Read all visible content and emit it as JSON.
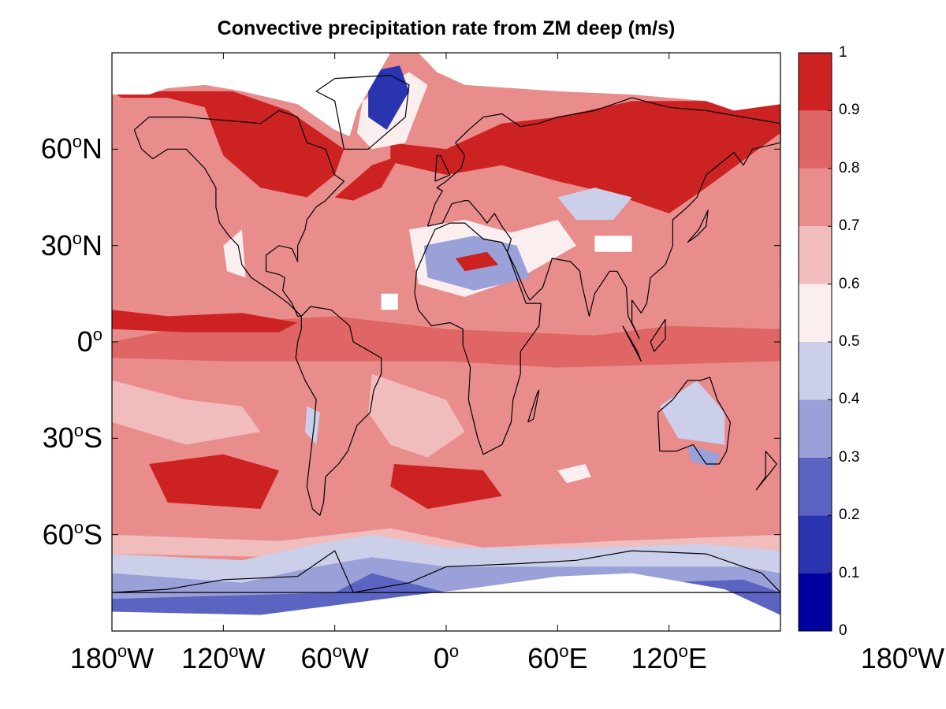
{
  "chart_data": {
    "type": "heatmap",
    "title": "Convective precipitation rate from ZM deep (m/s)",
    "projection": "equirectangular",
    "x_axis": {
      "range": [
        -180,
        180
      ],
      "ticks": [
        {
          "base": "180",
          "sup": "o",
          "suffix": "W"
        },
        {
          "base": "120",
          "sup": "o",
          "suffix": "W"
        },
        {
          "base": "60",
          "sup": "o",
          "suffix": "W"
        },
        {
          "base": "0",
          "sup": "o",
          "suffix": ""
        },
        {
          "base": "60",
          "sup": "o",
          "suffix": "E"
        },
        {
          "base": "120",
          "sup": "o",
          "suffix": "E"
        },
        {
          "base": "180",
          "sup": "o",
          "suffix": "W"
        }
      ]
    },
    "y_axis": {
      "range": [
        -90,
        90
      ],
      "ticks": [
        {
          "base": "60",
          "sup": "o",
          "suffix": "N"
        },
        {
          "base": "30",
          "sup": "o",
          "suffix": "N"
        },
        {
          "base": "0",
          "sup": "o",
          "suffix": ""
        },
        {
          "base": "30",
          "sup": "o",
          "suffix": "S"
        },
        {
          "base": "60",
          "sup": "o",
          "suffix": "S"
        }
      ]
    },
    "colorbar": {
      "range": [
        0,
        1
      ],
      "ticks": [
        "0",
        "0.1",
        "0.2",
        "0.3",
        "0.4",
        "0.5",
        "0.6",
        "0.7",
        "0.8",
        "0.9",
        "1"
      ],
      "colors": [
        "#00009e",
        "#2a33b0",
        "#5c64c2",
        "#9aa0d8",
        "#cbcfea",
        "#fbeeee",
        "#f1bcbc",
        "#e98c8c",
        "#e06666",
        "#cc2222"
      ]
    },
    "missing_color": "#ffffff",
    "coastline_color": "#000000"
  }
}
